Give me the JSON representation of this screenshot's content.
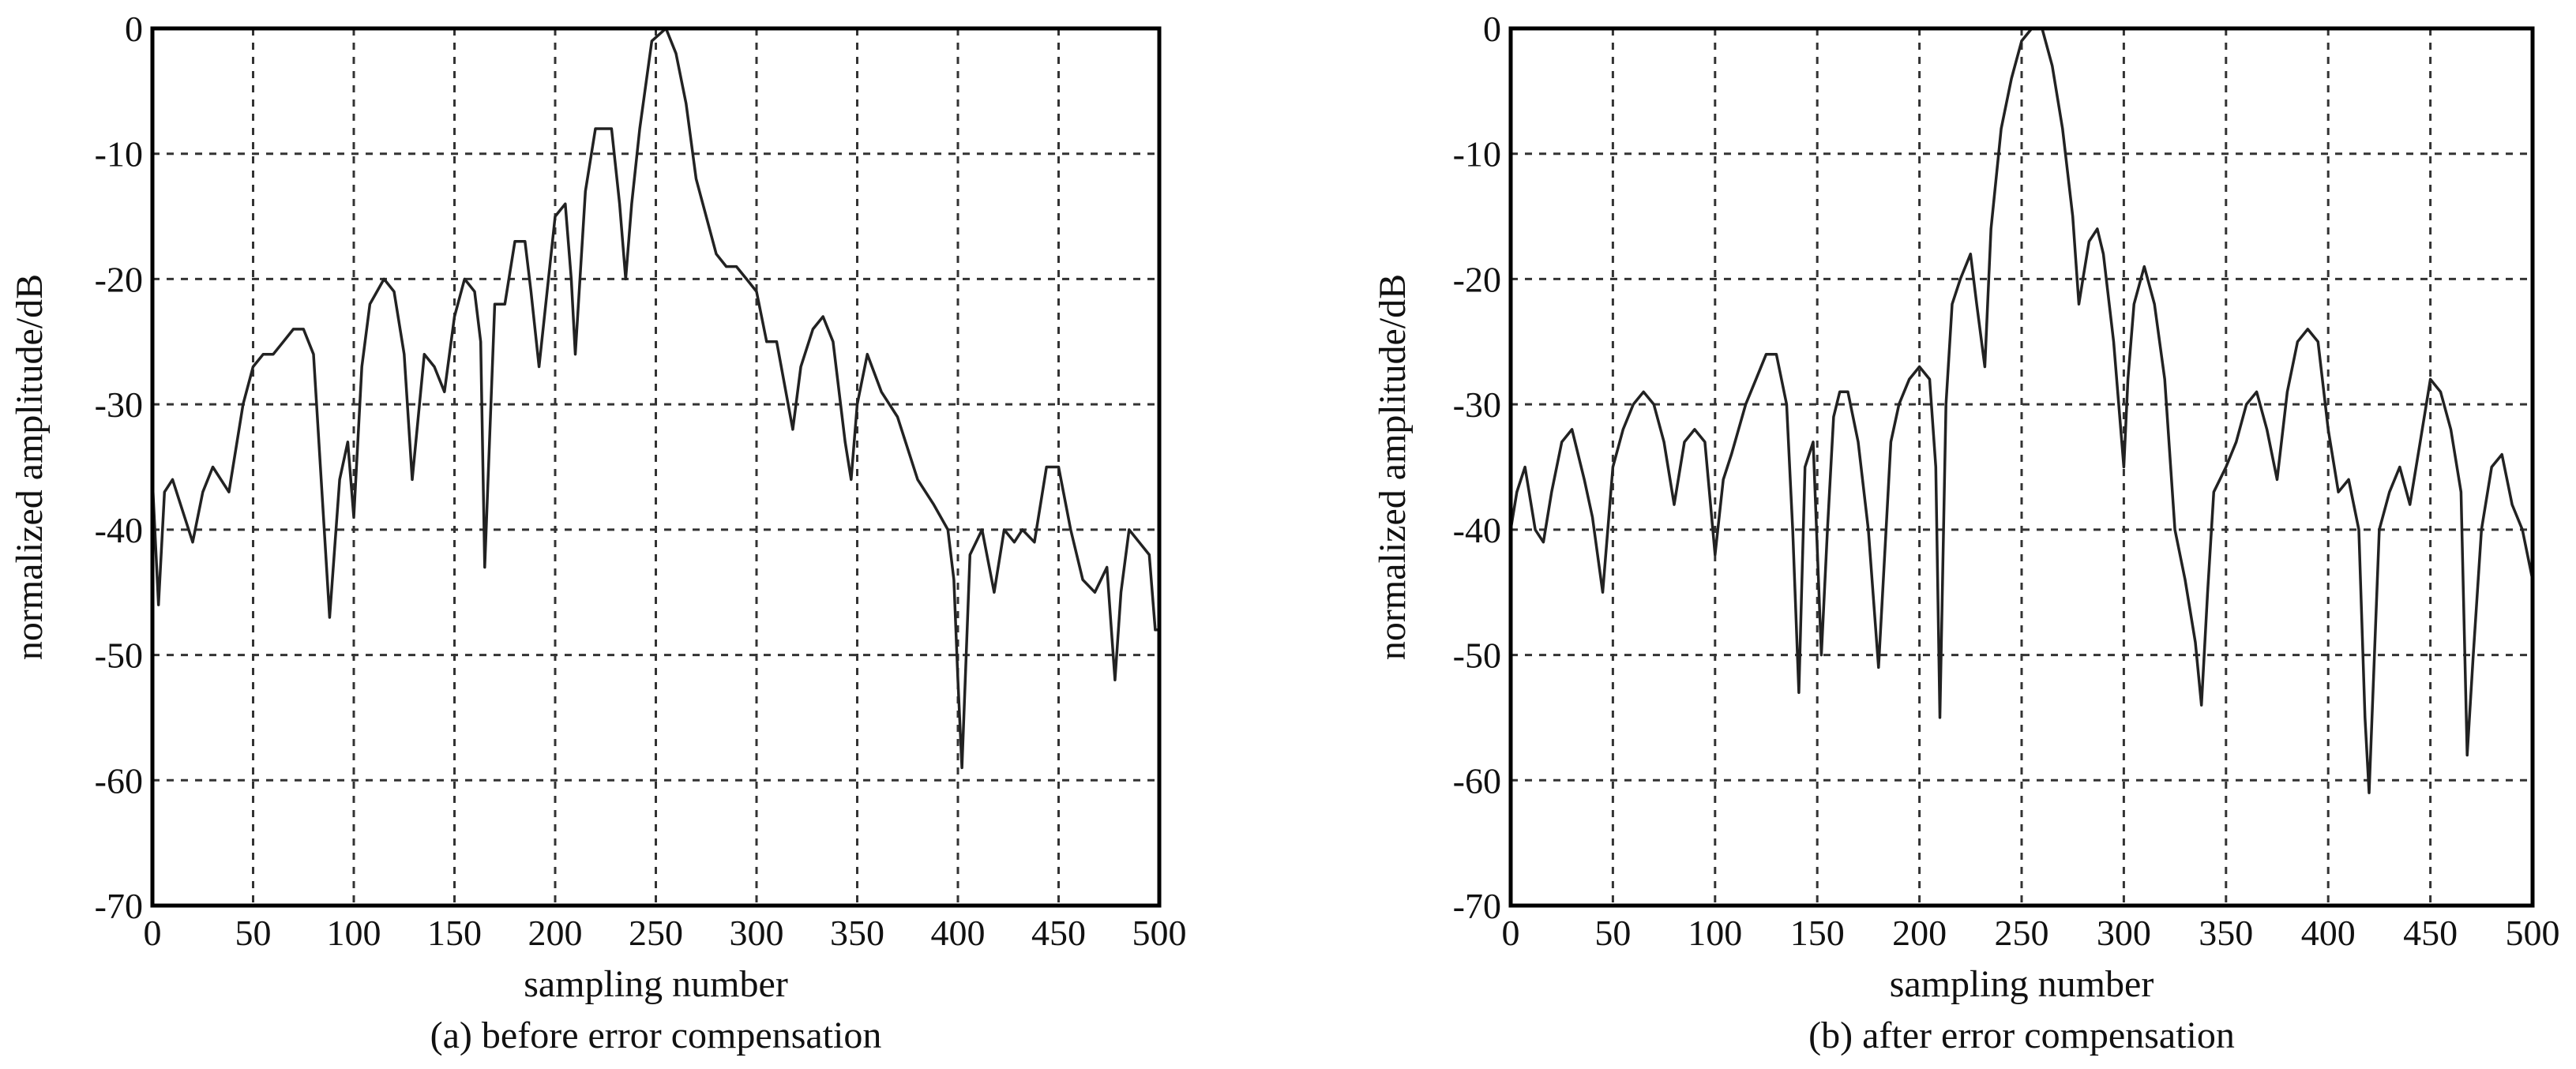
{
  "figure": {
    "panels": [
      {
        "caption": "(a) before error compensation"
      },
      {
        "caption": "(b) after error compensation"
      }
    ]
  },
  "colors": {
    "line": "#222222",
    "grid": "#333333",
    "axis": "#000000",
    "background": "#ffffff"
  },
  "chart_data": [
    {
      "type": "line",
      "title": "",
      "caption": "(a) before error compensation",
      "xlabel": "sampling number",
      "ylabel": "normalized amplitude/dB",
      "xlim": [
        0,
        500
      ],
      "ylim": [
        -70,
        0
      ],
      "xticks": [
        0,
        50,
        100,
        150,
        200,
        250,
        300,
        350,
        400,
        450,
        500
      ],
      "yticks": [
        0,
        -10,
        -20,
        -30,
        -40,
        -50,
        -60,
        -70
      ],
      "grid": true,
      "series": [
        {
          "x": [
            0,
            3,
            6,
            10,
            16,
            20,
            25,
            30,
            38,
            45,
            50,
            55,
            60,
            65,
            70,
            75,
            80,
            88,
            93,
            97,
            100,
            104,
            108,
            115,
            120,
            125,
            129,
            135,
            140,
            145,
            150,
            155,
            160,
            163,
            165,
            170,
            175,
            180,
            185,
            188,
            192,
            196,
            200,
            205,
            208,
            210,
            215,
            220,
            228,
            232,
            235,
            238,
            242,
            248,
            255,
            260,
            265,
            270,
            280,
            285,
            290,
            295,
            300,
            305,
            310,
            318,
            322,
            328,
            333,
            338,
            344,
            347,
            350,
            355,
            362,
            370,
            380,
            388,
            395,
            398,
            400,
            402,
            406,
            412,
            418,
            423,
            428,
            432,
            438,
            444,
            450,
            456,
            462,
            468,
            474,
            478,
            481,
            485,
            490,
            495,
            498,
            500
          ],
          "y": [
            -36,
            -46,
            -37,
            -36,
            -39,
            -41,
            -37,
            -35,
            -37,
            -30,
            -27,
            -26,
            -26,
            -25,
            -24,
            -24,
            -26,
            -47,
            -36,
            -33,
            -39,
            -27,
            -22,
            -20,
            -21,
            -26,
            -36,
            -26,
            -27,
            -29,
            -23,
            -20,
            -21,
            -25,
            -43,
            -22,
            -22,
            -17,
            -17,
            -21,
            -27,
            -21,
            -15,
            -14,
            -20,
            -26,
            -13,
            -8,
            -8,
            -14,
            -20,
            -14,
            -8,
            -1,
            0,
            -2,
            -6,
            -12,
            -18,
            -19,
            -19,
            -20,
            -21,
            -25,
            -25,
            -32,
            -27,
            -24,
            -23,
            -25,
            -33,
            -36,
            -30,
            -26,
            -29,
            -31,
            -36,
            -38,
            -40,
            -44,
            -52,
            -59,
            -42,
            -40,
            -45,
            -40,
            -41,
            -40,
            -41,
            -35,
            -35,
            -40,
            -44,
            -45,
            -43,
            -52,
            -45,
            -40,
            -41,
            -42,
            -48,
            -48
          ]
        }
      ]
    },
    {
      "type": "line",
      "title": "",
      "caption": "(b) after error compensation",
      "xlabel": "sampling number",
      "ylabel": "normalized amplitude/dB",
      "xlim": [
        0,
        500
      ],
      "ylim": [
        -70,
        0
      ],
      "xticks": [
        0,
        50,
        100,
        150,
        200,
        250,
        300,
        350,
        400,
        450,
        500
      ],
      "yticks": [
        0,
        -10,
        -20,
        -30,
        -40,
        -50,
        -60,
        -70
      ],
      "grid": true,
      "series": [
        {
          "x": [
            0,
            3,
            7,
            12,
            16,
            20,
            25,
            30,
            36,
            40,
            45,
            50,
            55,
            60,
            65,
            70,
            75,
            80,
            85,
            90,
            95,
            100,
            104,
            108,
            115,
            120,
            125,
            130,
            135,
            138,
            141,
            144,
            148,
            152,
            155,
            158,
            161,
            165,
            170,
            175,
            180,
            183,
            186,
            190,
            195,
            200,
            205,
            208,
            210,
            213,
            216,
            220,
            225,
            228,
            232,
            235,
            240,
            245,
            250,
            255,
            260,
            265,
            270,
            275,
            278,
            280,
            283,
            287,
            290,
            295,
            300,
            302,
            305,
            310,
            315,
            320,
            325,
            330,
            335,
            338,
            341,
            344,
            350,
            355,
            360,
            365,
            370,
            375,
            380,
            385,
            390,
            395,
            400,
            405,
            410,
            415,
            418,
            420,
            425,
            430,
            435,
            440,
            445,
            450,
            455,
            460,
            465,
            468,
            471,
            475,
            480,
            485,
            490,
            495,
            500
          ],
          "y": [
            -40,
            -37,
            -35,
            -40,
            -41,
            -37,
            -33,
            -32,
            -36,
            -39,
            -45,
            -35,
            -32,
            -30,
            -29,
            -30,
            -33,
            -38,
            -33,
            -32,
            -33,
            -42,
            -36,
            -34,
            -30,
            -28,
            -26,
            -26,
            -30,
            -40,
            -53,
            -35,
            -33,
            -50,
            -40,
            -31,
            -29,
            -29,
            -33,
            -40,
            -51,
            -42,
            -33,
            -30,
            -28,
            -27,
            -28,
            -35,
            -55,
            -30,
            -22,
            -20,
            -18,
            -22,
            -27,
            -16,
            -8,
            -4,
            -1,
            0,
            0,
            -3,
            -8,
            -15,
            -22,
            -20,
            -17,
            -16,
            -18,
            -25,
            -35,
            -28,
            -22,
            -19,
            -22,
            -28,
            -40,
            -44,
            -49,
            -54,
            -45,
            -37,
            -35,
            -33,
            -30,
            -29,
            -32,
            -36,
            -29,
            -25,
            -24,
            -25,
            -32,
            -37,
            -36,
            -40,
            -55,
            -61,
            -40,
            -37,
            -35,
            -38,
            -33,
            -28,
            -29,
            -32,
            -37,
            -58,
            -50,
            -40,
            -35,
            -34,
            -38,
            -40,
            -44
          ]
        }
      ]
    }
  ]
}
